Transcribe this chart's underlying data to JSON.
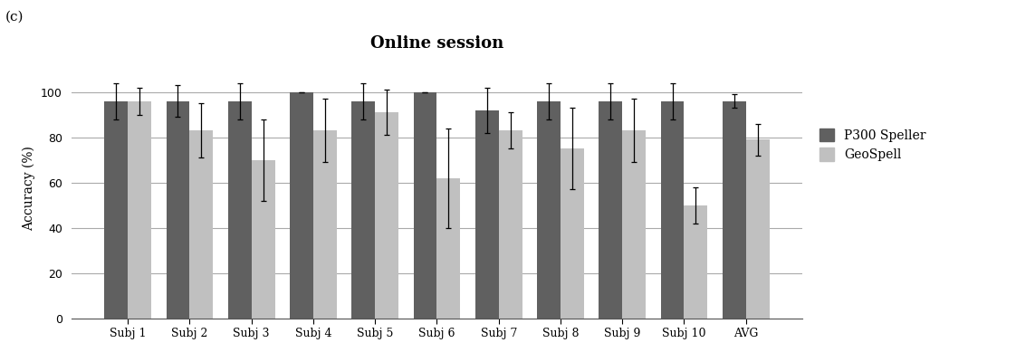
{
  "title": "Online session",
  "subtitle_label": "(c)",
  "ylabel": "Accuracy (%)",
  "categories": [
    "Subj 1",
    "Subj 2",
    "Subj 3",
    "Subj 4",
    "Subj 5",
    "Subj 6",
    "Subj 7",
    "Subj 8",
    "Subj 9",
    "Subj 10",
    "AVG"
  ],
  "p300_values": [
    96,
    96,
    96,
    100,
    96,
    100,
    92,
    96,
    96,
    96,
    96
  ],
  "geo_values": [
    96,
    83,
    70,
    83,
    91,
    62,
    83,
    75,
    83,
    50,
    79
  ],
  "p300_errors": [
    8,
    7,
    8,
    0,
    8,
    0,
    10,
    8,
    8,
    8,
    3
  ],
  "geo_errors": [
    6,
    12,
    18,
    14,
    10,
    22,
    8,
    18,
    14,
    8,
    7
  ],
  "p300_color": "#606060",
  "geo_color": "#C0C0C0",
  "bar_width": 0.38,
  "ylim": [
    0,
    115
  ],
  "yticks": [
    0,
    20,
    40,
    60,
    80,
    100
  ],
  "grid_color": "#aaaaaa",
  "title_fontsize": 13,
  "axis_fontsize": 10,
  "tick_fontsize": 9,
  "legend_fontsize": 10,
  "background_color": "#ffffff",
  "legend_labels": [
    "P300 Speller",
    "GeoSpell"
  ]
}
